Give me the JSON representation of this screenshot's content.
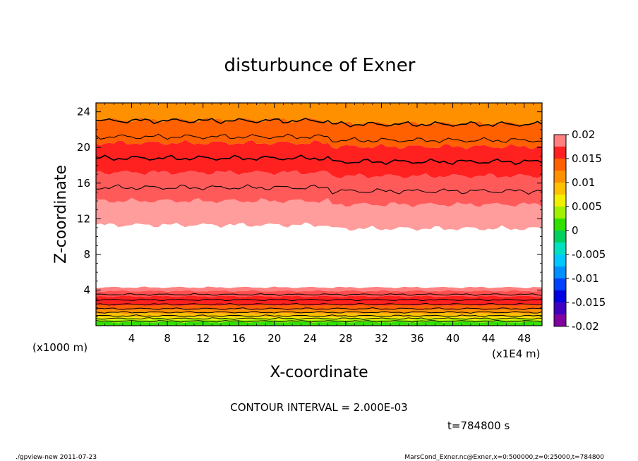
{
  "chart_data": {
    "type": "heatmap",
    "title": "disturbunce of Exner",
    "xlabel": "X-coordinate",
    "ylabel": "Z-coordinate",
    "x_unit": "(x1E4 m)",
    "y_unit": "(x1000 m)",
    "xlim": [
      0,
      50
    ],
    "ylim": [
      0,
      25
    ],
    "x_ticks": [
      4,
      8,
      12,
      16,
      20,
      24,
      28,
      32,
      36,
      40,
      44,
      48
    ],
    "y_ticks": [
      4,
      8,
      12,
      16,
      20,
      24
    ],
    "contour_interval_text": "CONTOUR INTERVAL = 2.000E-03",
    "time_text": "t=784800 s",
    "colorbar": {
      "ticks": [
        "0.02",
        "0.015",
        "0.01",
        "0.005",
        "0",
        "-0.005",
        "-0.01",
        "-0.015",
        "-0.02"
      ],
      "min": -0.02,
      "max": 0.02,
      "bands": [
        {
          "from": -0.02,
          "to": -0.0175,
          "color": "#8000a0"
        },
        {
          "from": -0.0175,
          "to": -0.015,
          "color": "#4000c0"
        },
        {
          "from": -0.015,
          "to": -0.0125,
          "color": "#0000e0"
        },
        {
          "from": -0.0125,
          "to": -0.01,
          "color": "#0040ff"
        },
        {
          "from": -0.01,
          "to": -0.0075,
          "color": "#0090ff"
        },
        {
          "from": -0.0075,
          "to": -0.005,
          "color": "#00c8ff"
        },
        {
          "from": -0.005,
          "to": -0.0025,
          "color": "#00e0c0"
        },
        {
          "from": -0.0025,
          "to": 0,
          "color": "#00d060"
        },
        {
          "from": 0,
          "to": 0.0025,
          "color": "#30e000"
        },
        {
          "from": 0.0025,
          "to": 0.005,
          "color": "#a0f000"
        },
        {
          "from": 0.005,
          "to": 0.0075,
          "color": "#f0f000"
        },
        {
          "from": 0.0075,
          "to": 0.01,
          "color": "#ffc000"
        },
        {
          "from": 0.01,
          "to": 0.0125,
          "color": "#ff9000"
        },
        {
          "from": 0.0125,
          "to": 0.015,
          "color": "#ff6000"
        },
        {
          "from": 0.015,
          "to": 0.0175,
          "color": "#ff2020"
        },
        {
          "from": 0.0175,
          "to": 0.02,
          "color": "#ff8080"
        }
      ]
    },
    "field_layers": [
      {
        "z_bottom": 0.0,
        "z_top": 0.4,
        "color": "#30e000"
      },
      {
        "z_bottom": 0.4,
        "z_top": 0.7,
        "color": "#a0f000"
      },
      {
        "z_bottom": 0.7,
        "z_top": 1.0,
        "color": "#f0f000"
      },
      {
        "z_bottom": 1.0,
        "z_top": 1.4,
        "color": "#ffc000"
      },
      {
        "z_bottom": 1.4,
        "z_top": 1.8,
        "color": "#ff9000"
      },
      {
        "z_bottom": 1.8,
        "z_top": 2.3,
        "color": "#ff6000"
      },
      {
        "z_bottom": 2.3,
        "z_top": 3.3,
        "color": "#ff2020"
      },
      {
        "z_bottom": 3.3,
        "z_top": 3.9,
        "color": "#ff5050"
      },
      {
        "z_bottom": 3.9,
        "z_top": 4.3,
        "color": "#ff8080"
      },
      {
        "z_bottom": 4.3,
        "z_top": 11.3,
        "color": "#ffffff"
      },
      {
        "z_bottom": 11.3,
        "z_top": 14.0,
        "color": "#ff9c9c"
      },
      {
        "z_bottom": 14.0,
        "z_top": 17.2,
        "color": "#ff5a5a"
      },
      {
        "z_bottom": 17.2,
        "z_top": 20.5,
        "color": "#ff2020"
      },
      {
        "z_bottom": 20.5,
        "z_top": 23.1,
        "color": "#ff6000"
      },
      {
        "z_bottom": 23.1,
        "z_top": 25.0,
        "color": "#ff9000"
      }
    ],
    "contour_levels_z": [
      0.5,
      0.8,
      1.1,
      1.5,
      1.9,
      2.4,
      2.9,
      3.5,
      15.5,
      18.8,
      21.2,
      23.0
    ]
  },
  "footer": {
    "left": "./gpview-new   2011-07-23",
    "right": "MarsCond_Exner.nc@Exner,x=0:500000,z=0:25000,t=784800"
  }
}
